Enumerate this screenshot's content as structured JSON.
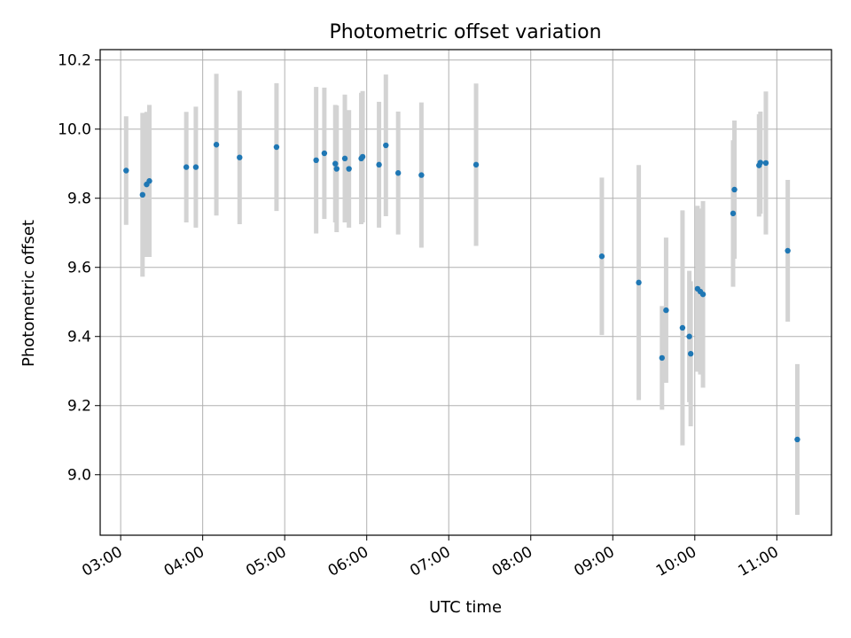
{
  "chart_data": {
    "type": "scatter",
    "title": "Photometric offset variation",
    "xlabel": "UTC time",
    "ylabel": "Photometric offset",
    "x_axis": {
      "type": "time",
      "range": [
        "02:45",
        "11:40"
      ],
      "ticks": [
        "03:00",
        "04:00",
        "05:00",
        "06:00",
        "07:00",
        "08:00",
        "09:00",
        "10:00",
        "11:00"
      ]
    },
    "y_axis": {
      "range": [
        8.825,
        10.23
      ],
      "ticks": [
        "9.0",
        "9.2",
        "9.4",
        "9.6",
        "9.8",
        "10.0",
        "10.2"
      ]
    },
    "grid": true,
    "legend": "none",
    "colors": {
      "point": "#1f77b4",
      "error_bar": "#d3d3d3",
      "grid": "#b0b0b0"
    },
    "points": [
      {
        "time": "03:04",
        "y": 9.88,
        "err": 0.157
      },
      {
        "time": "03:16",
        "y": 9.81,
        "err": 0.237
      },
      {
        "time": "03:19",
        "y": 9.84,
        "err": 0.21
      },
      {
        "time": "03:21",
        "y": 9.85,
        "err": 0.22
      },
      {
        "time": "03:48",
        "y": 9.89,
        "err": 0.16
      },
      {
        "time": "03:55",
        "y": 9.89,
        "err": 0.175
      },
      {
        "time": "04:10",
        "y": 9.955,
        "err": 0.205
      },
      {
        "time": "04:27",
        "y": 9.918,
        "err": 0.193
      },
      {
        "time": "04:54",
        "y": 9.948,
        "err": 0.185
      },
      {
        "time": "05:23",
        "y": 9.91,
        "err": 0.212
      },
      {
        "time": "05:29",
        "y": 9.93,
        "err": 0.19
      },
      {
        "time": "05:37",
        "y": 9.9,
        "err": 0.17
      },
      {
        "time": "05:38",
        "y": 9.885,
        "err": 0.183
      },
      {
        "time": "05:44",
        "y": 9.915,
        "err": 0.185
      },
      {
        "time": "05:47",
        "y": 9.885,
        "err": 0.17
      },
      {
        "time": "05:56",
        "y": 9.915,
        "err": 0.19
      },
      {
        "time": "05:57",
        "y": 9.92,
        "err": 0.19
      },
      {
        "time": "06:09",
        "y": 9.897,
        "err": 0.182
      },
      {
        "time": "06:14",
        "y": 9.953,
        "err": 0.205
      },
      {
        "time": "06:23",
        "y": 9.873,
        "err": 0.178
      },
      {
        "time": "06:40",
        "y": 9.867,
        "err": 0.21
      },
      {
        "time": "07:20",
        "y": 9.897,
        "err": 0.235
      },
      {
        "time": "08:52",
        "y": 9.632,
        "err": 0.228
      },
      {
        "time": "09:19",
        "y": 9.556,
        "err": 0.34
      },
      {
        "time": "09:36",
        "y": 9.338,
        "err": 0.15
      },
      {
        "time": "09:39",
        "y": 9.476,
        "err": 0.21
      },
      {
        "time": "09:51",
        "y": 9.425,
        "err": 0.34
      },
      {
        "time": "09:56",
        "y": 9.4,
        "err": 0.19
      },
      {
        "time": "09:57",
        "y": 9.35,
        "err": 0.21
      },
      {
        "time": "10:02",
        "y": 9.538,
        "err": 0.24
      },
      {
        "time": "10:04",
        "y": 9.53,
        "err": 0.24
      },
      {
        "time": "10:06",
        "y": 9.522,
        "err": 0.27
      },
      {
        "time": "10:28",
        "y": 9.756,
        "err": 0.212
      },
      {
        "time": "10:29",
        "y": 9.825,
        "err": 0.2
      },
      {
        "time": "10:47",
        "y": 9.895,
        "err": 0.148
      },
      {
        "time": "10:48",
        "y": 9.903,
        "err": 0.148
      },
      {
        "time": "10:52",
        "y": 9.902,
        "err": 0.207
      },
      {
        "time": "11:08",
        "y": 9.648,
        "err": 0.205
      },
      {
        "time": "11:15",
        "y": 9.102,
        "err": 0.218
      }
    ]
  }
}
